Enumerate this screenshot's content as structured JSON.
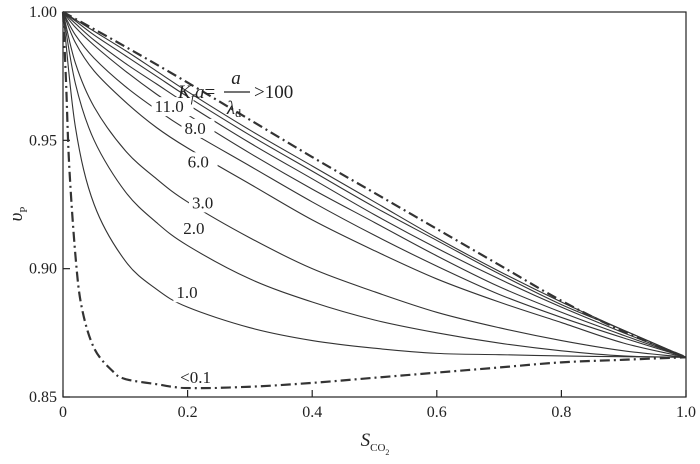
{
  "chart_data": {
    "type": "line",
    "xlabel": {
      "main": "S",
      "sub": "CO",
      "subsub": "2"
    },
    "ylabel": {
      "main": "υ",
      "sub": "P"
    },
    "xlim": [
      0,
      1
    ],
    "ylim": [
      0.85,
      1.0
    ],
    "xticks": [
      0,
      0.2,
      0.4,
      0.6,
      0.8,
      1.0
    ],
    "xtick_labels": [
      "0",
      "0.2",
      "0.4",
      "0.6",
      "0.8",
      "1.0"
    ],
    "yticks": [
      0.85,
      0.9,
      0.95,
      1.0
    ],
    "ytick_labels": [
      "0.85",
      "0.90",
      "0.95",
      "1.00"
    ],
    "grid": false,
    "annotation": {
      "k": "K",
      "ksub": "f",
      "a": "a",
      "eq": "=",
      "num": "a",
      "den": "λ",
      "densub": "d",
      "gt": ">100"
    },
    "series": [
      {
        "name": "<0.1",
        "style": "dashdot",
        "x": [
          0,
          0.005,
          0.01,
          0.02,
          0.03,
          0.05,
          0.08,
          0.1,
          0.15,
          0.2,
          0.3,
          0.4,
          0.5,
          0.6,
          0.7,
          0.8,
          0.9,
          1.0
        ],
        "y": [
          1.0,
          0.972,
          0.94,
          0.905,
          0.885,
          0.869,
          0.86,
          0.857,
          0.855,
          0.8535,
          0.854,
          0.8555,
          0.8575,
          0.8595,
          0.8615,
          0.8635,
          0.8645,
          0.8655
        ]
      },
      {
        "name": "1.0",
        "style": "solid",
        "x": [
          0,
          0.02,
          0.05,
          0.1,
          0.15,
          0.2,
          0.3,
          0.4,
          0.5,
          0.6,
          0.7,
          0.8,
          0.9,
          1.0
        ],
        "y": [
          1.0,
          0.955,
          0.925,
          0.903,
          0.892,
          0.885,
          0.877,
          0.872,
          0.869,
          0.867,
          0.8665,
          0.866,
          0.8657,
          0.8655
        ]
      },
      {
        "name": "2.0",
        "style": "solid",
        "x": [
          0,
          0.02,
          0.05,
          0.1,
          0.15,
          0.2,
          0.3,
          0.4,
          0.5,
          0.6,
          0.7,
          0.8,
          0.9,
          1.0
        ],
        "y": [
          1.0,
          0.972,
          0.95,
          0.93,
          0.918,
          0.909,
          0.896,
          0.887,
          0.88,
          0.875,
          0.871,
          0.868,
          0.866,
          0.8655
        ]
      },
      {
        "name": "3.0",
        "style": "solid",
        "x": [
          0,
          0.02,
          0.05,
          0.1,
          0.15,
          0.2,
          0.3,
          0.4,
          0.5,
          0.6,
          0.7,
          0.8,
          0.9,
          1.0
        ],
        "y": [
          1.0,
          0.98,
          0.963,
          0.946,
          0.935,
          0.926,
          0.912,
          0.9,
          0.891,
          0.883,
          0.877,
          0.872,
          0.868,
          0.8655
        ]
      },
      {
        "name": "6.0",
        "style": "solid",
        "x": [
          0,
          0.02,
          0.05,
          0.1,
          0.15,
          0.2,
          0.3,
          0.4,
          0.5,
          0.6,
          0.7,
          0.8,
          0.9,
          1.0
        ],
        "y": [
          1.0,
          0.988,
          0.977,
          0.965,
          0.955,
          0.947,
          0.933,
          0.919,
          0.907,
          0.896,
          0.887,
          0.879,
          0.871,
          0.8655
        ]
      },
      {
        "name": "8.0",
        "style": "solid",
        "x": [
          0,
          0.02,
          0.05,
          0.1,
          0.15,
          0.2,
          0.3,
          0.4,
          0.5,
          0.6,
          0.7,
          0.8,
          0.9,
          1.0
        ],
        "y": [
          1.0,
          0.991,
          0.982,
          0.971,
          0.962,
          0.954,
          0.94,
          0.926,
          0.913,
          0.901,
          0.89,
          0.881,
          0.873,
          0.8655
        ]
      },
      {
        "name": "11.0",
        "style": "solid",
        "x": [
          0,
          0.02,
          0.05,
          0.1,
          0.15,
          0.2,
          0.3,
          0.4,
          0.5,
          0.6,
          0.7,
          0.8,
          0.9,
          1.0
        ],
        "y": [
          1.0,
          0.994,
          0.987,
          0.977,
          0.968,
          0.96,
          0.945,
          0.931,
          0.918,
          0.905,
          0.893,
          0.883,
          0.874,
          0.8655
        ]
      },
      {
        "name": "unlabeled-a",
        "style": "solid",
        "x": [
          0,
          0.02,
          0.05,
          0.1,
          0.15,
          0.2,
          0.3,
          0.4,
          0.5,
          0.6,
          0.7,
          0.8,
          0.9,
          1.0
        ],
        "y": [
          1.0,
          0.9955,
          0.989,
          0.98,
          0.972,
          0.964,
          0.949,
          0.935,
          0.921,
          0.908,
          0.896,
          0.885,
          0.875,
          0.8655
        ]
      },
      {
        "name": "unlabeled-b",
        "style": "solid",
        "x": [
          0,
          0.02,
          0.05,
          0.1,
          0.15,
          0.2,
          0.3,
          0.4,
          0.5,
          0.6,
          0.7,
          0.8,
          0.9,
          1.0
        ],
        "y": [
          1.0,
          0.9965,
          0.991,
          0.983,
          0.975,
          0.967,
          0.952,
          0.938,
          0.924,
          0.911,
          0.898,
          0.886,
          0.876,
          0.8655
        ]
      },
      {
        "name": "unlabeled-c",
        "style": "solid",
        "x": [
          0,
          0.02,
          0.05,
          0.1,
          0.15,
          0.2,
          0.3,
          0.4,
          0.5,
          0.6,
          0.7,
          0.8,
          0.9,
          1.0
        ],
        "y": [
          1.0,
          0.997,
          0.9925,
          0.985,
          0.977,
          0.969,
          0.954,
          0.94,
          0.926,
          0.912,
          0.899,
          0.887,
          0.876,
          0.8655
        ]
      },
      {
        "name": ">100",
        "style": "dashdot",
        "x": [
          0,
          0.1,
          0.2,
          0.3,
          0.4,
          0.5,
          0.6,
          0.7,
          0.8,
          0.9,
          1.0
        ],
        "y": [
          1.0,
          0.9865,
          0.9725,
          0.958,
          0.9435,
          0.9295,
          0.9155,
          0.9015,
          0.8875,
          0.8755,
          0.8655
        ]
      }
    ],
    "curve_labels": [
      {
        "text": "11.0",
        "x": 0.147,
        "y": 0.961
      },
      {
        "text": "8.0",
        "x": 0.195,
        "y": 0.9525
      },
      {
        "text": "6.0",
        "x": 0.2,
        "y": 0.9395
      },
      {
        "text": "3.0",
        "x": 0.207,
        "y": 0.9235
      },
      {
        "text": "2.0",
        "x": 0.193,
        "y": 0.9135
      },
      {
        "text": "1.0",
        "x": 0.182,
        "y": 0.8885
      },
      {
        "text": "<0.1",
        "x": 0.188,
        "y": 0.8555
      }
    ]
  }
}
